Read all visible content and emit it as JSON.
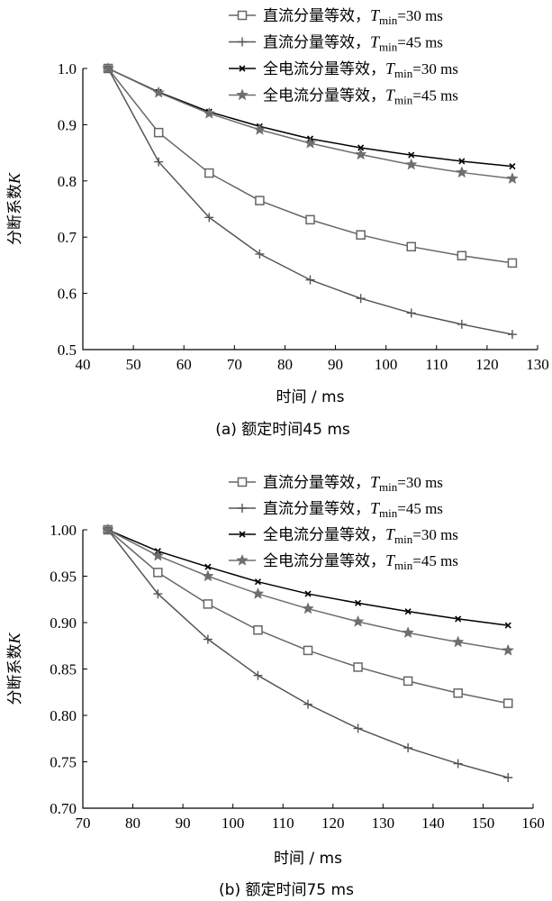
{
  "chart_data": [
    {
      "type": "line",
      "caption": "(a)  额定时间45 ms",
      "xlabel": "时间 / ms",
      "ylabel": "分断系数",
      "ylabel_symbol": "K",
      "xlim": [
        40,
        130
      ],
      "ylim": [
        0.5,
        1.0
      ],
      "xticks": [
        40,
        50,
        60,
        70,
        80,
        90,
        100,
        110,
        120,
        130
      ],
      "yticks": [
        0.5,
        0.6,
        0.7,
        0.8,
        0.9,
        1.0
      ],
      "ytick_labels": [
        "0.5",
        "0.6",
        "0.7",
        "0.8",
        "0.9",
        "1.0"
      ],
      "legend_position": "top-right",
      "x": [
        45,
        55,
        65,
        75,
        85,
        95,
        105,
        115,
        125
      ],
      "series": [
        {
          "label": "直流分量等效，",
          "tmin": "=30 ms",
          "marker": "square",
          "color": "#666666",
          "values": [
            1.0,
            0.886,
            0.814,
            0.765,
            0.731,
            0.704,
            0.683,
            0.667,
            0.654
          ]
        },
        {
          "label": "直流分量等效，",
          "tmin": "=45 ms",
          "marker": "plus",
          "color": "#555555",
          "values": [
            1.0,
            0.834,
            0.735,
            0.67,
            0.624,
            0.591,
            0.565,
            0.545,
            0.527
          ]
        },
        {
          "label": "全电流分量等效，",
          "tmin": "=30 ms",
          "marker": "x",
          "color": "#000000",
          "values": [
            1.0,
            0.958,
            0.923,
            0.897,
            0.875,
            0.859,
            0.846,
            0.835,
            0.826
          ]
        },
        {
          "label": "全电流分量等效，",
          "tmin": "=45 ms",
          "marker": "star",
          "color": "#6e6e6e",
          "values": [
            1.0,
            0.957,
            0.92,
            0.891,
            0.867,
            0.847,
            0.829,
            0.815,
            0.804
          ]
        }
      ]
    },
    {
      "type": "line",
      "caption": "(b)  额定时间75 ms",
      "xlabel": "时间 / ms",
      "ylabel": "分断系数",
      "ylabel_symbol": "K",
      "xlim": [
        70,
        160
      ],
      "ylim": [
        0.7,
        1.0
      ],
      "xticks": [
        70,
        80,
        90,
        100,
        110,
        120,
        130,
        140,
        150,
        160
      ],
      "yticks": [
        0.7,
        0.75,
        0.8,
        0.85,
        0.9,
        0.95,
        1.0
      ],
      "ytick_labels": [
        "0.70",
        "0.75",
        "0.80",
        "0.85",
        "0.90",
        "0.95",
        "1.00"
      ],
      "legend_position": "top-right",
      "x": [
        75,
        85,
        95,
        105,
        115,
        125,
        135,
        145,
        155
      ],
      "series": [
        {
          "label": "直流分量等效，",
          "tmin": "=30 ms",
          "marker": "square",
          "color": "#666666",
          "values": [
            1.0,
            0.954,
            0.92,
            0.892,
            0.87,
            0.852,
            0.837,
            0.824,
            0.813
          ]
        },
        {
          "label": "直流分量等效，",
          "tmin": "=45 ms",
          "marker": "plus",
          "color": "#555555",
          "values": [
            1.0,
            0.931,
            0.882,
            0.843,
            0.812,
            0.786,
            0.765,
            0.748,
            0.733
          ]
        },
        {
          "label": "全电流分量等效，",
          "tmin": "=30 ms",
          "marker": "x",
          "color": "#000000",
          "values": [
            1.0,
            0.977,
            0.96,
            0.944,
            0.931,
            0.921,
            0.912,
            0.904,
            0.897
          ]
        },
        {
          "label": "全电流分量等效，",
          "tmin": "=45 ms",
          "marker": "star",
          "color": "#6e6e6e",
          "values": [
            1.0,
            0.972,
            0.95,
            0.931,
            0.915,
            0.901,
            0.889,
            0.879,
            0.87
          ]
        }
      ]
    }
  ]
}
